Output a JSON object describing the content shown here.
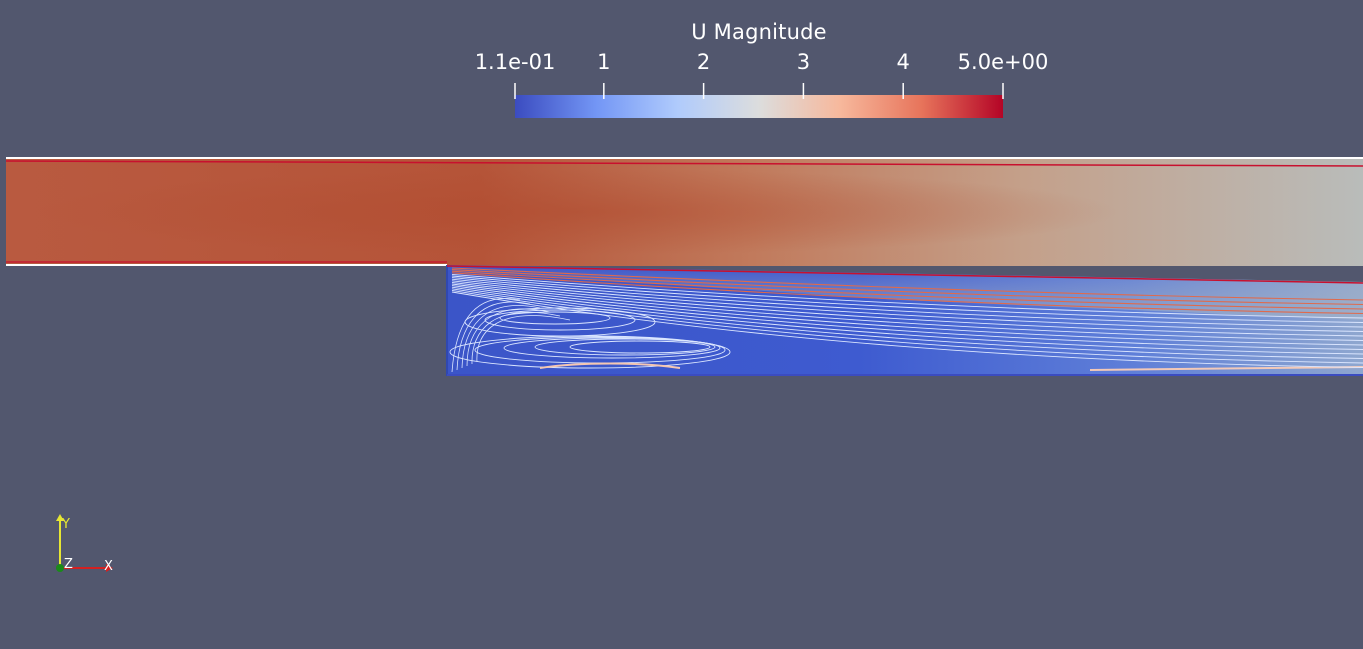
{
  "colorbar": {
    "title": "U Magnitude",
    "range": [
      0.11,
      5.0
    ],
    "ticks": [
      {
        "value": 0.11,
        "label": "1.1e-01"
      },
      {
        "value": 1,
        "label": "1"
      },
      {
        "value": 2,
        "label": "2"
      },
      {
        "value": 3,
        "label": "3"
      },
      {
        "value": 4,
        "label": "4"
      },
      {
        "value": 5.0,
        "label": "5.0e+00"
      }
    ],
    "colormap": [
      "#3b4cc0",
      "#7396f5",
      "#b0cbfc",
      "#dcdddd",
      "#f7b89c",
      "#e7745b",
      "#b40426"
    ]
  },
  "orientation_axes": {
    "x": "X",
    "y": "Y",
    "z": "Z"
  },
  "colors": {
    "background": "#52576e",
    "x_axis": "#d42020",
    "y_axis": "#e6e633",
    "z_axis": "#1a8a1a",
    "contour_low": "#dbe6ff",
    "contour_high": "#e06a4c",
    "wall_line": "#c8102e"
  }
}
